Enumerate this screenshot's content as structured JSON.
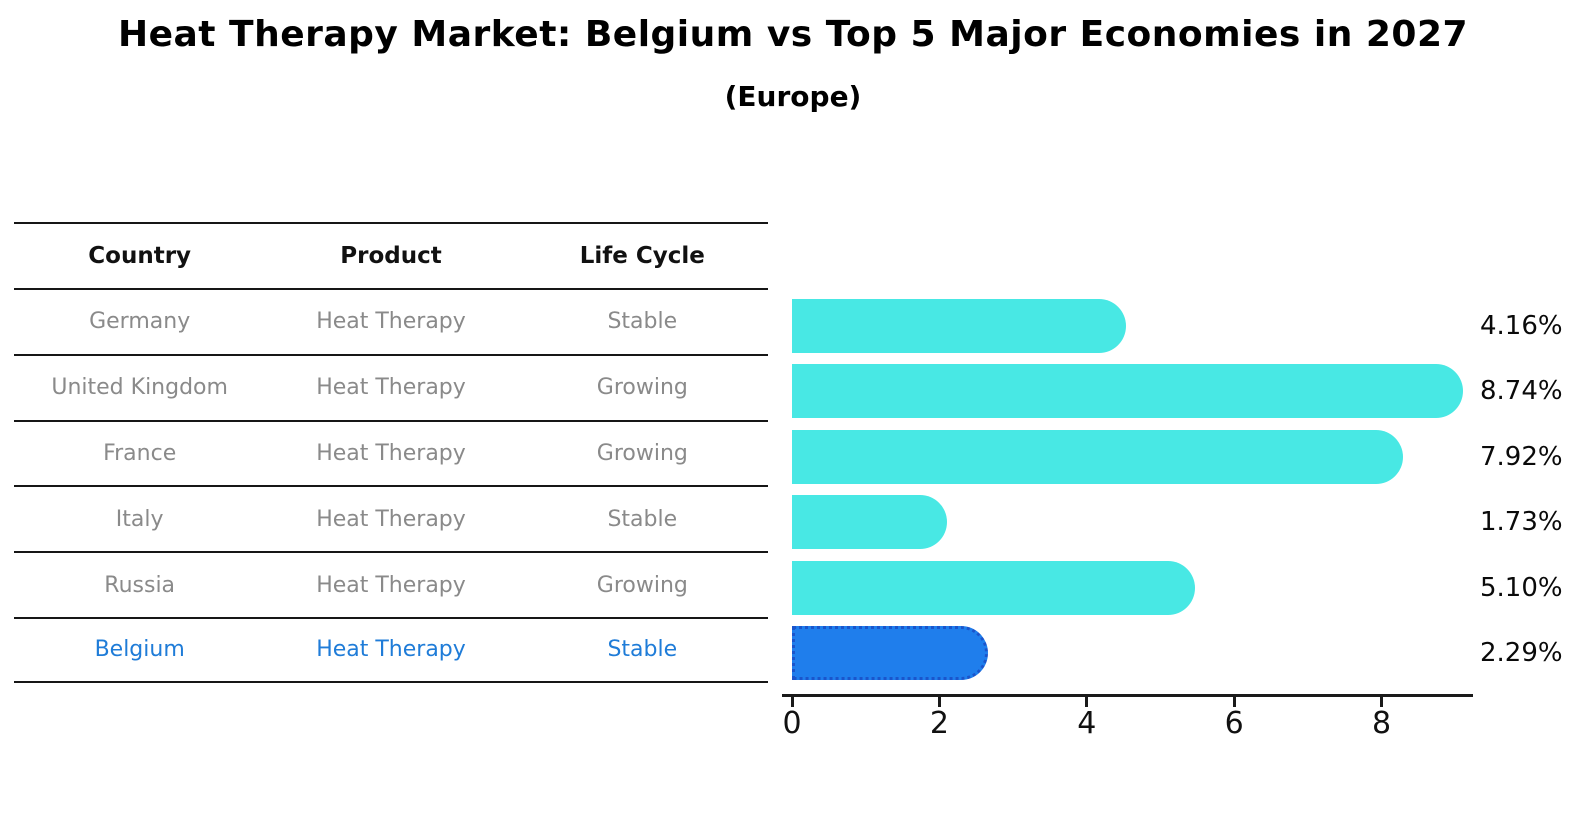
{
  "chart_data": {
    "type": "bar",
    "orientation": "horizontal",
    "title": "Heat Therapy Market: Belgium vs Top 5 Major Economies in 2027",
    "subtitle": "(Europe)",
    "categories": [
      "Germany",
      "United Kingdom",
      "France",
      "Italy",
      "Russia",
      "Belgium"
    ],
    "values": [
      4.16,
      8.74,
      7.92,
      1.73,
      5.1,
      2.29
    ],
    "value_labels": [
      "4.16%",
      "8.74%",
      "7.92%",
      "1.73%",
      "5.10%",
      "2.29%"
    ],
    "x_ticks": [
      0,
      2,
      4,
      6,
      8
    ],
    "xlim": [
      0,
      9.25
    ],
    "grid": false,
    "legend_position": "none",
    "bar_color": "#48e8e4",
    "highlight_bar_color": "#1f7eec",
    "highlight_border_color": "#1a55cc",
    "highlight_index": 5,
    "highlight_text_color": "#1f7cd8",
    "row_text_color": "#8a8a8a"
  },
  "table": {
    "headers": {
      "country": "Country",
      "product": "Product",
      "life_cycle": "Life Cycle"
    },
    "rows": [
      {
        "country": "Germany",
        "product": "Heat Therapy",
        "life_cycle": "Stable",
        "highlight": false
      },
      {
        "country": "United Kingdom",
        "product": "Heat Therapy",
        "life_cycle": "Growing",
        "highlight": false
      },
      {
        "country": "France",
        "product": "Heat Therapy",
        "life_cycle": "Growing",
        "highlight": false
      },
      {
        "country": "Italy",
        "product": "Heat Therapy",
        "life_cycle": "Stable",
        "highlight": false
      },
      {
        "country": "Russia",
        "product": "Heat Therapy",
        "life_cycle": "Growing",
        "highlight": false
      },
      {
        "country": "Belgium",
        "product": "Heat Therapy",
        "life_cycle": "Stable",
        "highlight": true
      }
    ]
  }
}
